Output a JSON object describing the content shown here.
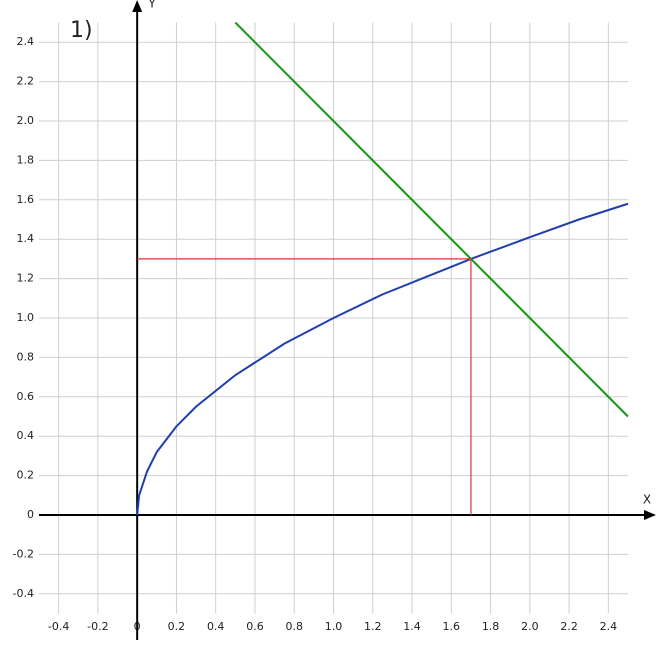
{
  "chart_data": {
    "type": "line",
    "annotation": "1)",
    "xlabel": "X",
    "ylabel": "Y",
    "xlim": [
      -0.5,
      2.5
    ],
    "ylim": [
      -0.5,
      2.5
    ],
    "grid": true,
    "xticks": [
      -0.4,
      -0.2,
      0,
      0.2,
      0.4,
      0.6,
      0.8,
      {
        "value": 1,
        "label": "1.0"
      },
      1.2,
      1.4,
      1.6,
      1.8,
      {
        "value": 2,
        "label": "2.0"
      },
      2.2,
      2.4
    ],
    "yticks": [
      -0.4,
      -0.2,
      0,
      0.2,
      0.4,
      0.6,
      0.8,
      {
        "value": 1,
        "label": "1.0"
      },
      1.2,
      1.4,
      1.6,
      1.8,
      {
        "value": 2,
        "label": "2.0"
      },
      2.2,
      2.4
    ],
    "series": [
      {
        "color": "#1f3fb0",
        "x": [
          0,
          0.01,
          0.05,
          0.1,
          0.2,
          0.3,
          0.4,
          0.5,
          0.75,
          1,
          1.25,
          1.5,
          1.7,
          2,
          2.25,
          2.5
        ],
        "values": [
          0,
          0.1,
          0.22,
          0.32,
          0.45,
          0.55,
          0.63,
          0.71,
          0.87,
          1,
          1.12,
          1.22,
          1.3,
          1.41,
          1.5,
          1.58
        ]
      },
      {
        "color": "#119911",
        "x": [
          0.5,
          2.5
        ],
        "values": [
          2.5,
          0.5
        ]
      },
      {
        "color": "#dd3333",
        "x": [
          0,
          1.7,
          1.7
        ],
        "values": [
          1.3,
          1.3,
          0
        ]
      }
    ]
  }
}
